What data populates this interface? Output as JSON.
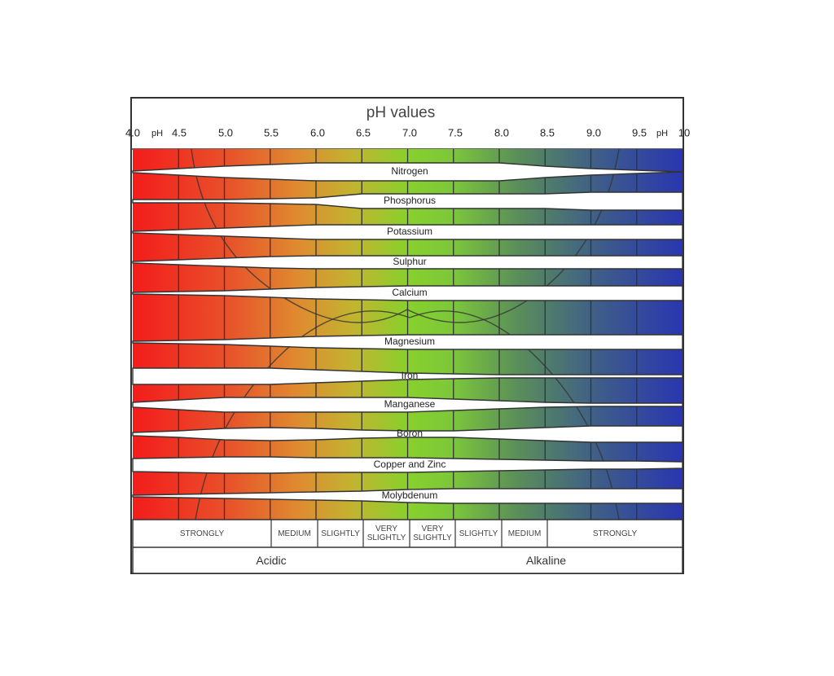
{
  "header": {
    "title": "pH values",
    "ticks": [
      "4.0",
      "pH",
      "4.5",
      "5.0",
      "5.5",
      "6.0",
      "6.5",
      "7.0",
      "7.5",
      "8.0",
      "8.5",
      "9.0",
      "9.5",
      "pH",
      "10"
    ]
  },
  "nutrients": [
    "Nitrogen",
    "Phosphorus",
    "Potassium",
    "Sulphur",
    "Calcium",
    "Magnesium",
    "Iron",
    "Manganese",
    "Boron",
    "Copper and Zinc",
    "Molybdenum"
  ],
  "strength": [
    "STRONGLY",
    "MEDIUM",
    "SLIGHTLY",
    "VERY SLIGHTLY",
    "VERY SLIGHTLY",
    "SLIGHTLY",
    "MEDIUM",
    "STRONGLY"
  ],
  "sides": [
    "Acidic",
    "Alkaline"
  ]
}
